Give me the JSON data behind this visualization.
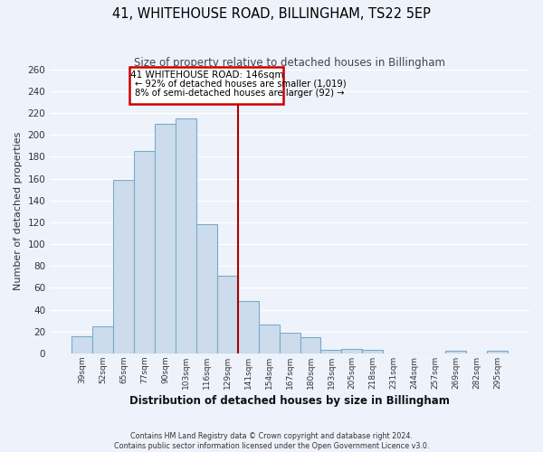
{
  "title": "41, WHITEHOUSE ROAD, BILLINGHAM, TS22 5EP",
  "subtitle": "Size of property relative to detached houses in Billingham",
  "xlabel": "Distribution of detached houses by size in Billingham",
  "ylabel": "Number of detached properties",
  "bar_color": "#ccdcec",
  "bar_edge_color": "#7aaac8",
  "background_color": "#eef2fb",
  "grid_color": "#ffffff",
  "categories": [
    "39sqm",
    "52sqm",
    "65sqm",
    "77sqm",
    "90sqm",
    "103sqm",
    "116sqm",
    "129sqm",
    "141sqm",
    "154sqm",
    "167sqm",
    "180sqm",
    "193sqm",
    "205sqm",
    "218sqm",
    "231sqm",
    "244sqm",
    "257sqm",
    "269sqm",
    "282sqm",
    "295sqm"
  ],
  "values": [
    16,
    25,
    159,
    185,
    210,
    215,
    118,
    71,
    48,
    26,
    19,
    15,
    3,
    4,
    3,
    0,
    0,
    0,
    2,
    0,
    2
  ],
  "vline_color": "#aa0000",
  "annotation_title": "41 WHITEHOUSE ROAD: 146sqm",
  "annotation_line1": "← 92% of detached houses are smaller (1,019)",
  "annotation_line2": "8% of semi-detached houses are larger (92) →",
  "annotation_box_color": "#cc0000",
  "ylim": [
    0,
    260
  ],
  "yticks": [
    0,
    20,
    40,
    60,
    80,
    100,
    120,
    140,
    160,
    180,
    200,
    220,
    240,
    260
  ],
  "footnote1": "Contains HM Land Registry data © Crown copyright and database right 2024.",
  "footnote2": "Contains public sector information licensed under the Open Government Licence v3.0."
}
